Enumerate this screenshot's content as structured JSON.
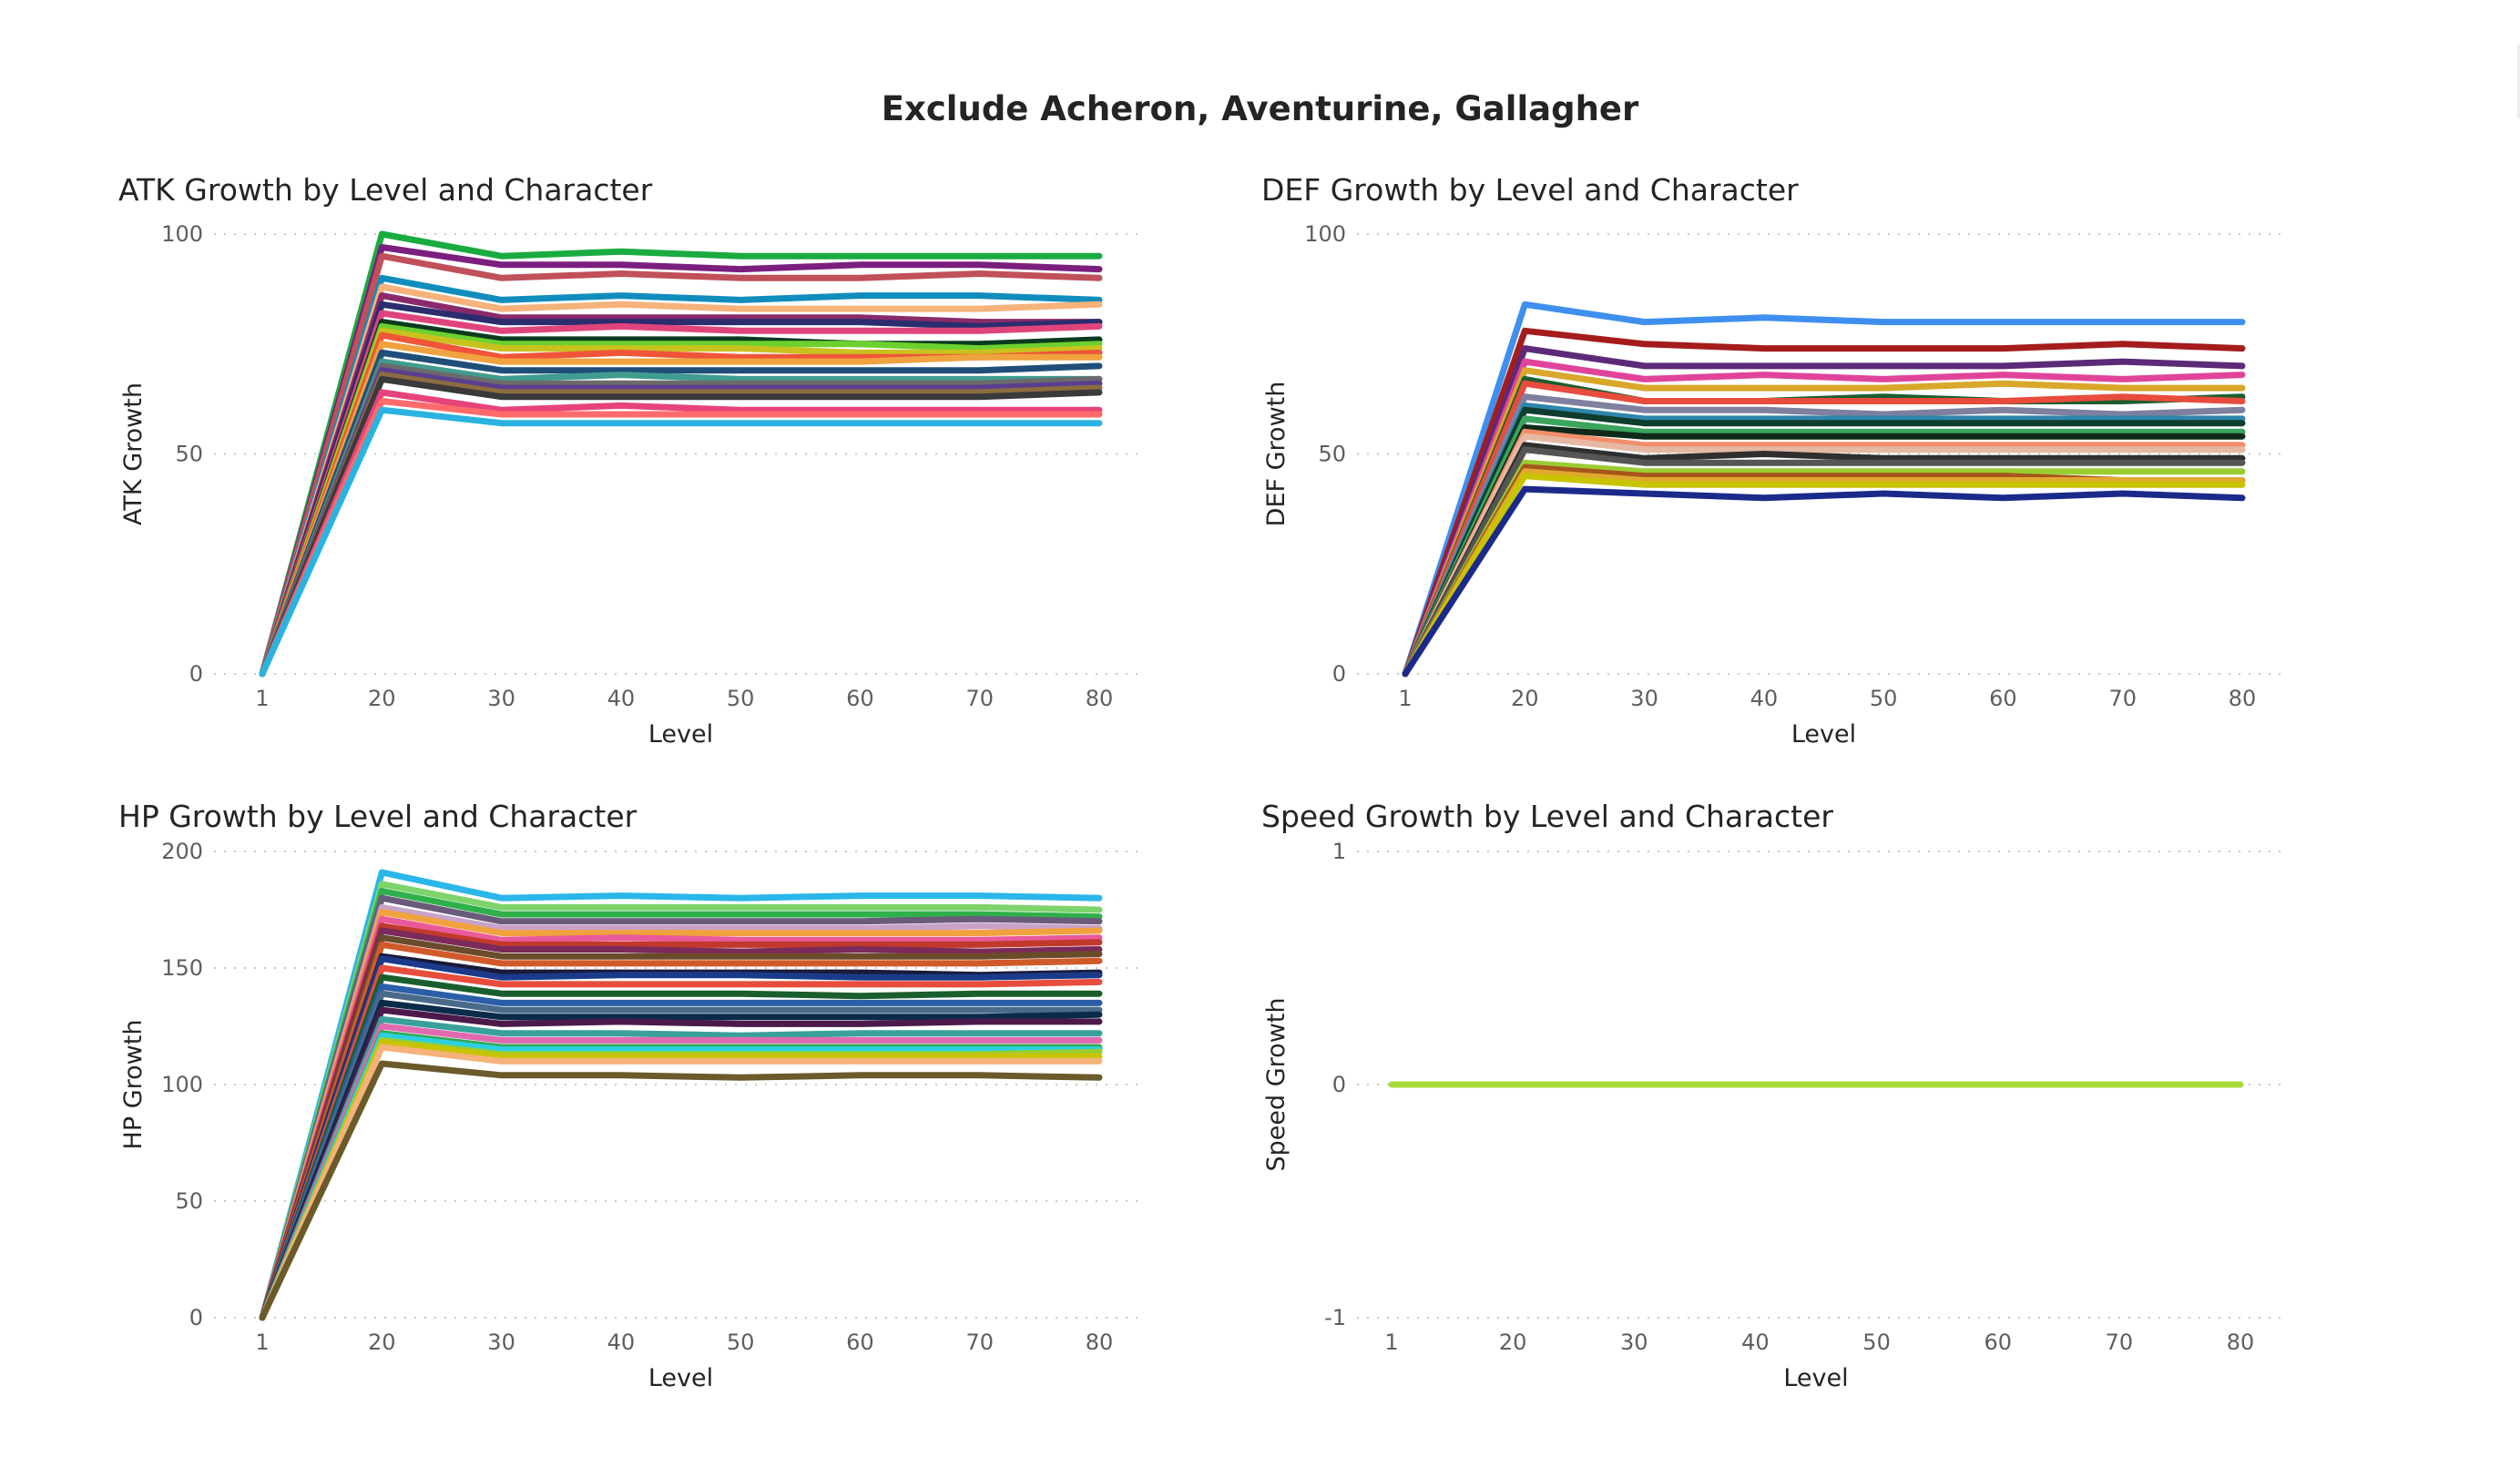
{
  "page_title": "Exclude Acheron, Aventurine, Gallagher",
  "chart_data": [
    {
      "type": "line",
      "title": "ATK Growth by Level and Character",
      "xlabel": "Level",
      "ylabel": "ATK Growth",
      "categories": [
        "1",
        "20",
        "30",
        "40",
        "50",
        "60",
        "70",
        "80"
      ],
      "ylim": [
        0,
        100
      ],
      "yticks": [
        0,
        50,
        100
      ],
      "grid": true,
      "legend": "none",
      "series": [
        {
          "color": "#1aab40",
          "values": [
            0,
            100,
            95,
            96,
            95,
            95,
            95,
            95
          ]
        },
        {
          "color": "#7b1f7f",
          "values": [
            0,
            97,
            93,
            93,
            92,
            93,
            93,
            92
          ]
        },
        {
          "color": "#c0505a",
          "values": [
            0,
            95,
            90,
            91,
            90,
            90,
            91,
            90
          ]
        },
        {
          "color": "#118dbd",
          "values": [
            0,
            90,
            85,
            86,
            85,
            86,
            86,
            85
          ]
        },
        {
          "color": "#f5b27a",
          "values": [
            0,
            88,
            83,
            84,
            83,
            83,
            83,
            84
          ]
        },
        {
          "color": "#8a2a6b",
          "values": [
            0,
            86,
            81,
            81,
            81,
            81,
            80,
            80
          ]
        },
        {
          "color": "#2b2d6e",
          "values": [
            0,
            84,
            80,
            80,
            80,
            80,
            79,
            80
          ]
        },
        {
          "color": "#e0447c",
          "values": [
            0,
            82,
            78,
            79,
            78,
            78,
            78,
            79
          ]
        },
        {
          "color": "#0b3b1f",
          "values": [
            0,
            80,
            76,
            76,
            76,
            75,
            75,
            76
          ]
        },
        {
          "color": "#6cd12f",
          "values": [
            0,
            79,
            75,
            75,
            75,
            75,
            74,
            75
          ]
        },
        {
          "color": "#c9c21e",
          "values": [
            0,
            78,
            74,
            74,
            74,
            73,
            73,
            74
          ]
        },
        {
          "color": "#f0553a",
          "values": [
            0,
            77,
            72,
            73,
            72,
            72,
            72,
            73
          ]
        },
        {
          "color": "#f0a23e",
          "values": [
            0,
            75,
            71,
            71,
            71,
            71,
            72,
            72
          ]
        },
        {
          "color": "#1f4e79",
          "values": [
            0,
            73,
            69,
            69,
            69,
            69,
            69,
            70
          ]
        },
        {
          "color": "#3f9c8f",
          "values": [
            0,
            71,
            67,
            68,
            67,
            67,
            67,
            67
          ]
        },
        {
          "color": "#6b6b6b",
          "values": [
            0,
            70,
            66,
            66,
            66,
            66,
            66,
            67
          ]
        },
        {
          "color": "#5b3f8f",
          "values": [
            0,
            69,
            65,
            65,
            65,
            65,
            65,
            66
          ]
        },
        {
          "color": "#8c6d3f",
          "values": [
            0,
            68,
            64,
            64,
            64,
            64,
            64,
            65
          ]
        },
        {
          "color": "#3a3a3a",
          "values": [
            0,
            67,
            63,
            63,
            63,
            63,
            63,
            64
          ]
        },
        {
          "color": "#e6437a",
          "values": [
            0,
            64,
            60,
            61,
            60,
            60,
            60,
            60
          ]
        },
        {
          "color": "#ff6a6a",
          "values": [
            0,
            62,
            59,
            59,
            59,
            59,
            59,
            59
          ]
        },
        {
          "color": "#2ab3e0",
          "values": [
            0,
            60,
            57,
            57,
            57,
            57,
            57,
            57
          ]
        }
      ]
    },
    {
      "type": "line",
      "title": "DEF Growth by Level and Character",
      "xlabel": "Level",
      "ylabel": "DEF Growth",
      "categories": [
        "1",
        "20",
        "30",
        "40",
        "50",
        "60",
        "70",
        "80"
      ],
      "ylim": [
        0,
        100
      ],
      "yticks": [
        0,
        50,
        100
      ],
      "grid": true,
      "legend": "none",
      "series": [
        {
          "color": "#3f8fef",
          "values": [
            0,
            84,
            80,
            81,
            80,
            80,
            80,
            80
          ]
        },
        {
          "color": "#a51c1c",
          "values": [
            0,
            78,
            75,
            74,
            74,
            74,
            75,
            74
          ]
        },
        {
          "color": "#5c2a78",
          "values": [
            0,
            74,
            70,
            70,
            70,
            70,
            71,
            70
          ]
        },
        {
          "color": "#e0449a",
          "values": [
            0,
            71,
            67,
            68,
            67,
            68,
            67,
            68
          ]
        },
        {
          "color": "#d9a72a",
          "values": [
            0,
            69,
            65,
            65,
            65,
            66,
            65,
            65
          ]
        },
        {
          "color": "#1a5e2e",
          "values": [
            0,
            67,
            62,
            62,
            63,
            62,
            62,
            63
          ]
        },
        {
          "color": "#e74c3c",
          "values": [
            0,
            66,
            62,
            62,
            62,
            62,
            63,
            62
          ]
        },
        {
          "color": "#7f7f9f",
          "values": [
            0,
            63,
            60,
            60,
            59,
            60,
            59,
            60
          ]
        },
        {
          "color": "#2e86ab",
          "values": [
            0,
            61,
            58,
            58,
            58,
            58,
            58,
            58
          ]
        },
        {
          "color": "#0f3d2e",
          "values": [
            0,
            60,
            57,
            57,
            57,
            57,
            57,
            57
          ]
        },
        {
          "color": "#3aa55b",
          "values": [
            0,
            58,
            55,
            55,
            55,
            55,
            55,
            55
          ]
        },
        {
          "color": "#102a1a",
          "values": [
            0,
            56,
            54,
            54,
            54,
            54,
            54,
            54
          ]
        },
        {
          "color": "#f28e6a",
          "values": [
            0,
            55,
            52,
            52,
            52,
            52,
            52,
            52
          ]
        },
        {
          "color": "#e6b8a2",
          "values": [
            0,
            54,
            51,
            51,
            51,
            51,
            51,
            51
          ]
        },
        {
          "color": "#2f2f2f",
          "values": [
            0,
            52,
            49,
            50,
            49,
            49,
            49,
            49
          ]
        },
        {
          "color": "#555555",
          "values": [
            0,
            51,
            48,
            48,
            48,
            48,
            48,
            48
          ]
        },
        {
          "color": "#9acd32",
          "values": [
            0,
            48,
            46,
            46,
            46,
            46,
            46,
            46
          ]
        },
        {
          "color": "#a6561c",
          "values": [
            0,
            47,
            45,
            45,
            45,
            45,
            44,
            44
          ]
        },
        {
          "color": "#e0a82e",
          "values": [
            0,
            46,
            44,
            44,
            44,
            44,
            44,
            44
          ]
        },
        {
          "color": "#c8c400",
          "values": [
            0,
            45,
            43,
            43,
            43,
            43,
            43,
            43
          ]
        },
        {
          "color": "#1b2a8a",
          "values": [
            0,
            42,
            41,
            40,
            41,
            40,
            41,
            40
          ]
        }
      ]
    },
    {
      "type": "line",
      "title": "HP Growth by Level and Character",
      "xlabel": "Level",
      "ylabel": "HP Growth",
      "categories": [
        "1",
        "20",
        "30",
        "40",
        "50",
        "60",
        "70",
        "80"
      ],
      "ylim": [
        0,
        200
      ],
      "yticks": [
        0,
        50,
        100,
        150,
        200
      ],
      "grid": true,
      "legend": "none",
      "series": [
        {
          "color": "#2ab6e8",
          "values": [
            0,
            191,
            180,
            181,
            180,
            181,
            181,
            180
          ]
        },
        {
          "color": "#7ed36b",
          "values": [
            0,
            186,
            176,
            176,
            176,
            176,
            176,
            175
          ]
        },
        {
          "color": "#2fb04a",
          "values": [
            0,
            183,
            173,
            173,
            173,
            173,
            173,
            172
          ]
        },
        {
          "color": "#6b5b7b",
          "values": [
            0,
            180,
            170,
            170,
            170,
            170,
            171,
            170
          ]
        },
        {
          "color": "#c8a2c8",
          "values": [
            0,
            176,
            167,
            167,
            167,
            167,
            168,
            167
          ]
        },
        {
          "color": "#f0a23e",
          "values": [
            0,
            174,
            165,
            165,
            165,
            165,
            165,
            166
          ]
        },
        {
          "color": "#e85a9a",
          "values": [
            0,
            171,
            162,
            163,
            162,
            162,
            162,
            163
          ]
        },
        {
          "color": "#c0392b",
          "values": [
            0,
            168,
            160,
            160,
            160,
            160,
            160,
            161
          ]
        },
        {
          "color": "#7b2a5a",
          "values": [
            0,
            166,
            158,
            158,
            157,
            158,
            157,
            158
          ]
        },
        {
          "color": "#6b4c2a",
          "values": [
            0,
            163,
            155,
            155,
            155,
            155,
            155,
            156
          ]
        },
        {
          "color": "#d15a2a",
          "values": [
            0,
            160,
            152,
            152,
            152,
            152,
            152,
            153
          ]
        },
        {
          "color": "#1a1a3a",
          "values": [
            0,
            155,
            148,
            148,
            148,
            148,
            147,
            148
          ]
        },
        {
          "color": "#1b3b8a",
          "values": [
            0,
            154,
            146,
            147,
            147,
            146,
            146,
            147
          ]
        },
        {
          "color": "#e74c3c",
          "values": [
            0,
            150,
            143,
            143,
            143,
            143,
            143,
            144
          ]
        },
        {
          "color": "#1a5e2e",
          "values": [
            0,
            146,
            139,
            139,
            139,
            138,
            139,
            139
          ]
        },
        {
          "color": "#2a5fa8",
          "values": [
            0,
            142,
            135,
            135,
            135,
            135,
            135,
            135
          ]
        },
        {
          "color": "#4a6a8a",
          "values": [
            0,
            139,
            132,
            132,
            132,
            132,
            132,
            132
          ]
        },
        {
          "color": "#0b2b4b",
          "values": [
            0,
            135,
            129,
            129,
            129,
            129,
            129,
            130
          ]
        },
        {
          "color": "#4b1a4b",
          "values": [
            0,
            132,
            126,
            127,
            126,
            126,
            127,
            127
          ]
        },
        {
          "color": "#3aa09a",
          "values": [
            0,
            128,
            122,
            122,
            121,
            122,
            122,
            122
          ]
        },
        {
          "color": "#e06ab0",
          "values": [
            0,
            125,
            119,
            119,
            119,
            119,
            119,
            119
          ]
        },
        {
          "color": "#32a852",
          "values": [
            0,
            122,
            116,
            116,
            116,
            116,
            116,
            116
          ]
        },
        {
          "color": "#2bd0e0",
          "values": [
            0,
            121,
            115,
            115,
            115,
            115,
            115,
            115
          ]
        },
        {
          "color": "#9acd32",
          "values": [
            0,
            119,
            113,
            113,
            113,
            113,
            113,
            114
          ]
        },
        {
          "color": "#c8c400",
          "values": [
            0,
            118,
            112,
            112,
            112,
            112,
            112,
            112
          ]
        },
        {
          "color": "#f5b27a",
          "values": [
            0,
            116,
            110,
            110,
            110,
            110,
            110,
            110
          ]
        },
        {
          "color": "#6b5a2a",
          "values": [
            0,
            109,
            104,
            104,
            103,
            104,
            104,
            103
          ]
        }
      ]
    },
    {
      "type": "line",
      "title": "Speed Growth by Level and Character",
      "xlabel": "Level",
      "ylabel": "Speed Growth",
      "categories": [
        "1",
        "20",
        "30",
        "40",
        "50",
        "60",
        "70",
        "80"
      ],
      "ylim": [
        -1,
        1
      ],
      "yticks": [
        -1,
        0,
        1
      ],
      "grid": true,
      "legend": "none",
      "series": [
        {
          "color": "#a8d93a",
          "values": [
            0,
            0,
            0,
            0,
            0,
            0,
            0,
            0
          ]
        }
      ]
    }
  ]
}
